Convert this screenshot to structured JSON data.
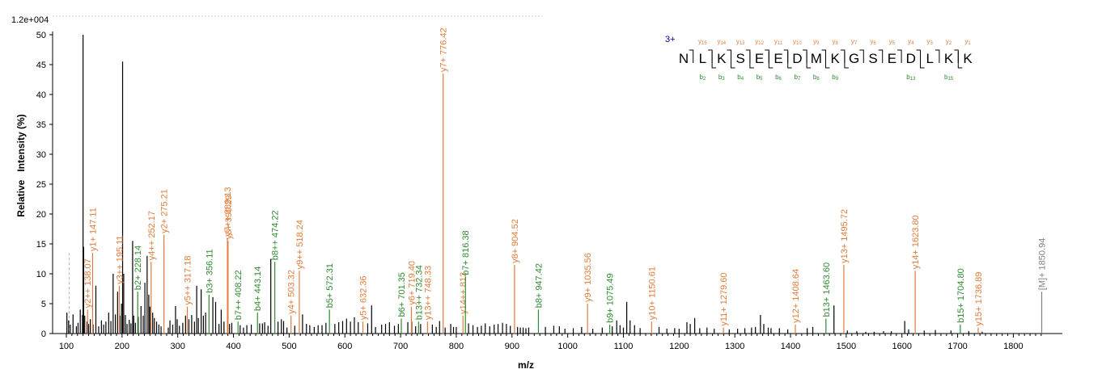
{
  "chart_data": {
    "type": "bar",
    "scale_label": "1.2e+004",
    "xlabel": "m/z",
    "ylabel": "Relative   Intensity (%)",
    "xlim": [
      80,
      1860
    ],
    "ylim": [
      0,
      50
    ],
    "x_ticks": [
      "100",
      "200",
      "300",
      "400",
      "500",
      "600",
      "700",
      "800",
      "900",
      "1000",
      "1100",
      "1200",
      "1300",
      "1400",
      "1500",
      "1600",
      "1700",
      "1800"
    ],
    "y_ticks": [
      "0",
      "5",
      "10",
      "15",
      "20",
      "25",
      "30",
      "35",
      "40",
      "45",
      "50"
    ],
    "colors": {
      "y_ion": "#e07b39",
      "b_ion": "#2e8b2e",
      "precursor": "#808080",
      "other": "#000000",
      "sequence_charge": "#00008b"
    },
    "background_peaks": [
      [
        101,
        3.5
      ],
      [
        104,
        2.2
      ],
      [
        107,
        1.5
      ],
      [
        112,
        3.2
      ],
      [
        118,
        1.2
      ],
      [
        121,
        1.8
      ],
      [
        125,
        4.0
      ],
      [
        129,
        3.1
      ],
      [
        130,
        50.0
      ],
      [
        131,
        14.5
      ],
      [
        133,
        3.0
      ],
      [
        137,
        2.0
      ],
      [
        140,
        1.6
      ],
      [
        143,
        2.4
      ],
      [
        148,
        1.5
      ],
      [
        153,
        8.0
      ],
      [
        158,
        1.2
      ],
      [
        163,
        2.2
      ],
      [
        167,
        1.5
      ],
      [
        171,
        2.0
      ],
      [
        176,
        3.5
      ],
      [
        180,
        2.1
      ],
      [
        184,
        10.0
      ],
      [
        188,
        3.2
      ],
      [
        192,
        7.0
      ],
      [
        196,
        3.0
      ],
      [
        199,
        5.0
      ],
      [
        201,
        45.5
      ],
      [
        203,
        10.0
      ],
      [
        206,
        3.1
      ],
      [
        209,
        1.6
      ],
      [
        213,
        2.3
      ],
      [
        216,
        1.7
      ],
      [
        219,
        15.5
      ],
      [
        221,
        3.0
      ],
      [
        224,
        1.8
      ],
      [
        229,
        2.8
      ],
      [
        234,
        4.6
      ],
      [
        238,
        3.0
      ],
      [
        241,
        8.5
      ],
      [
        245,
        13.0
      ],
      [
        248,
        6.5
      ],
      [
        250,
        4.5
      ],
      [
        255,
        3.5
      ],
      [
        258,
        2.6
      ],
      [
        262,
        2.0
      ],
      [
        266,
        1.5
      ],
      [
        270,
        1.2
      ],
      [
        283,
        1.0
      ],
      [
        286,
        2.2
      ],
      [
        291,
        1.5
      ],
      [
        296,
        4.6
      ],
      [
        299,
        2.4
      ],
      [
        303,
        1.3
      ],
      [
        309,
        1.8
      ],
      [
        314,
        3.0
      ],
      [
        320,
        2.4
      ],
      [
        325,
        3.1
      ],
      [
        330,
        2.0
      ],
      [
        334,
        8.0
      ],
      [
        337,
        2.6
      ],
      [
        342,
        7.4
      ],
      [
        346,
        3.0
      ],
      [
        350,
        3.5
      ],
      [
        363,
        6.1
      ],
      [
        368,
        5.3
      ],
      [
        374,
        1.6
      ],
      [
        378,
        4.0
      ],
      [
        383,
        2.0
      ],
      [
        393,
        1.6
      ],
      [
        397,
        1.8
      ],
      [
        412,
        1.4
      ],
      [
        418,
        1.0
      ],
      [
        424,
        1.4
      ],
      [
        432,
        1.5
      ],
      [
        447,
        1.7
      ],
      [
        452,
        1.7
      ],
      [
        456,
        1.9
      ],
      [
        462,
        1.3
      ],
      [
        467,
        12.5
      ],
      [
        480,
        2.0
      ],
      [
        486,
        2.4
      ],
      [
        490,
        2.1
      ],
      [
        496,
        1.0
      ],
      [
        510,
        1.3
      ],
      [
        524,
        3.2
      ],
      [
        531,
        1.6
      ],
      [
        537,
        1.4
      ],
      [
        545,
        1.1
      ],
      [
        552,
        1.4
      ],
      [
        559,
        1.4
      ],
      [
        566,
        1.8
      ],
      [
        582,
        1.6
      ],
      [
        589,
        1.9
      ],
      [
        596,
        2.1
      ],
      [
        603,
        2.5
      ],
      [
        610,
        2.0
      ],
      [
        617,
        2.7
      ],
      [
        624,
        1.9
      ],
      [
        641,
        1.7
      ],
      [
        648,
        4.7
      ],
      [
        655,
        1.1
      ],
      [
        666,
        1.5
      ],
      [
        673,
        1.6
      ],
      [
        680,
        1.9
      ],
      [
        689,
        1.3
      ],
      [
        696,
        1.6
      ],
      [
        713,
        1.9
      ],
      [
        720,
        2.0
      ],
      [
        727,
        1.2
      ],
      [
        736,
        1.6
      ],
      [
        757,
        1.5
      ],
      [
        764,
        1.1
      ],
      [
        770,
        2.1
      ],
      [
        780,
        1.0
      ],
      [
        790,
        1.6
      ],
      [
        795,
        1.1
      ],
      [
        800,
        1.1
      ],
      [
        822,
        1.7
      ],
      [
        830,
        1.4
      ],
      [
        838,
        1.1
      ],
      [
        845,
        1.3
      ],
      [
        852,
        1.7
      ],
      [
        860,
        1.2
      ],
      [
        868,
        1.5
      ],
      [
        875,
        1.6
      ],
      [
        883,
        1.8
      ],
      [
        890,
        1.6
      ],
      [
        897,
        1.3
      ],
      [
        910,
        1.1
      ],
      [
        915,
        1.0
      ],
      [
        920,
        1.0
      ],
      [
        925,
        0.9
      ],
      [
        930,
        1.0
      ],
      [
        960,
        1.1
      ],
      [
        975,
        1.3
      ],
      [
        985,
        1.2
      ],
      [
        995,
        0.8
      ],
      [
        1010,
        0.9
      ],
      [
        1025,
        1.1
      ],
      [
        1045,
        0.8
      ],
      [
        1062,
        1.0
      ],
      [
        1080,
        1.2
      ],
      [
        1088,
        2.2
      ],
      [
        1094,
        1.4
      ],
      [
        1100,
        1.0
      ],
      [
        1106,
        5.3
      ],
      [
        1112,
        2.2
      ],
      [
        1120,
        1.4
      ],
      [
        1130,
        0.9
      ],
      [
        1164,
        1.1
      ],
      [
        1178,
        0.8
      ],
      [
        1192,
        0.9
      ],
      [
        1200,
        0.8
      ],
      [
        1214,
        1.9
      ],
      [
        1220,
        1.6
      ],
      [
        1228,
        2.6
      ],
      [
        1237,
        0.9
      ],
      [
        1250,
        1.0
      ],
      [
        1263,
        0.8
      ],
      [
        1290,
        0.7
      ],
      [
        1305,
        0.8
      ],
      [
        1318,
        0.9
      ],
      [
        1330,
        1.0
      ],
      [
        1337,
        1.1
      ],
      [
        1346,
        3.1
      ],
      [
        1352,
        1.6
      ],
      [
        1360,
        1.0
      ],
      [
        1365,
        0.9
      ],
      [
        1380,
        0.9
      ],
      [
        1395,
        0.7
      ],
      [
        1430,
        0.9
      ],
      [
        1440,
        1.1
      ],
      [
        1478,
        4.7
      ],
      [
        1502,
        0.5
      ],
      [
        1519,
        0.4
      ],
      [
        1535,
        0.3
      ],
      [
        1550,
        0.3
      ],
      [
        1567,
        0.4
      ],
      [
        1581,
        0.4
      ],
      [
        1605,
        2.1
      ],
      [
        1612,
        0.7
      ],
      [
        1640,
        0.5
      ],
      [
        1660,
        0.6
      ],
      [
        1688,
        0.5
      ],
      [
        1720,
        0.4
      ],
      [
        1744,
        0.3
      ]
    ],
    "annotated_peaks": [
      {
        "mz": 138.07,
        "h": 4.0,
        "ion": "y",
        "label": "y2++ 138.07"
      },
      {
        "mz": 147.11,
        "h": 13.5,
        "ion": "y",
        "label": "y1+ 147.11"
      },
      {
        "mz": 195.11,
        "h": 8.0,
        "ion": "y",
        "label": "y3++ 195.11"
      },
      {
        "mz": 228.14,
        "h": 7.0,
        "ion": "b",
        "label": "b2+ 228.14"
      },
      {
        "mz": 252.17,
        "h": 12.0,
        "ion": "y",
        "label": "y4++ 252.17"
      },
      {
        "mz": 275.21,
        "h": 16.5,
        "ion": "y",
        "label": "y2+ 275.21"
      },
      {
        "mz": 317.18,
        "h": 4.5,
        "ion": "y",
        "label": "y5++ 317.18"
      },
      {
        "mz": 356.11,
        "h": 6.5,
        "ion": "b",
        "label": "b3+ 356.11"
      },
      {
        "mz": 389.13,
        "h": 16.0,
        "ion": "y",
        "label": "y7++ 389.13"
      },
      {
        "mz": 390.29,
        "h": 15.5,
        "ion": "y",
        "label": "y3+ 390.29"
      },
      {
        "mz": 408.22,
        "h": 2.0,
        "ion": "b",
        "label": "b7++ 408.22"
      },
      {
        "mz": 443.14,
        "h": 3.5,
        "ion": "b",
        "label": "b4+ 443.14"
      },
      {
        "mz": 474.22,
        "h": 12.0,
        "ion": "b",
        "label": "b8++ 474.22"
      },
      {
        "mz": 503.32,
        "h": 3.0,
        "ion": "y",
        "label": "y4+ 503.32"
      },
      {
        "mz": 518.24,
        "h": 10.5,
        "ion": "y",
        "label": "y9++ 518.24"
      },
      {
        "mz": 572.31,
        "h": 4.0,
        "ion": "b",
        "label": "b5+ 572.31"
      },
      {
        "mz": 632.36,
        "h": 2.0,
        "ion": "y",
        "label": "y5+ 632.36"
      },
      {
        "mz": 701.35,
        "h": 2.5,
        "ion": "b",
        "label": "b6+ 701.35"
      },
      {
        "mz": 719.4,
        "h": 4.5,
        "ion": "y",
        "label": "y6+ 719.40"
      },
      {
        "mz": 732.34,
        "h": 2.0,
        "ion": "b",
        "label": "b13++ 732.34"
      },
      {
        "mz": 748.33,
        "h": 2.0,
        "ion": "y",
        "label": "y13++ 748.33"
      },
      {
        "mz": 776.42,
        "h": 43.5,
        "ion": "y",
        "label": "y7+ 776.42"
      },
      {
        "mz": 812.0,
        "h": 3.0,
        "ion": "y",
        "label": "y14++ 812"
      },
      {
        "mz": 816.38,
        "h": 9.5,
        "ion": "b",
        "label": "b7+ 816.38"
      },
      {
        "mz": 904.52,
        "h": 11.5,
        "ion": "y",
        "label": "y8+ 904.52"
      },
      {
        "mz": 947.42,
        "h": 4.0,
        "ion": "b",
        "label": "b8+ 947.42"
      },
      {
        "mz": 1035.56,
        "h": 5.0,
        "ion": "y",
        "label": "y9+ 1035.56"
      },
      {
        "mz": 1075.49,
        "h": 1.5,
        "ion": "b",
        "label": "b9+ 1075.49"
      },
      {
        "mz": 1150.61,
        "h": 2.0,
        "ion": "y",
        "label": "y10+ 1150.61"
      },
      {
        "mz": 1279.6,
        "h": 1.0,
        "ion": "y",
        "label": "y11+ 1279.60"
      },
      {
        "mz": 1408.64,
        "h": 1.5,
        "ion": "y",
        "label": "y12+ 1408.64"
      },
      {
        "mz": 1463.6,
        "h": 2.5,
        "ion": "b",
        "label": "b13+ 1463.60"
      },
      {
        "mz": 1495.72,
        "h": 11.5,
        "ion": "y",
        "label": "y13+ 1495.72"
      },
      {
        "mz": 1623.8,
        "h": 10.5,
        "ion": "y",
        "label": "y14+ 1623.80"
      },
      {
        "mz": 1704.8,
        "h": 1.5,
        "ion": "b",
        "label": "b15+ 1704.80"
      },
      {
        "mz": 1736.89,
        "h": 1.0,
        "ion": "y",
        "label": "y15+ 1736.89"
      },
      {
        "mz": 1850.94,
        "h": 7.0,
        "ion": "precursor",
        "label": "[M]+ 1850.94"
      }
    ],
    "sequence": {
      "charge_label": "3+",
      "residues": [
        "N",
        "L",
        "K",
        "S",
        "E",
        "E",
        "D",
        "M",
        "K",
        "G",
        "S",
        "E",
        "D",
        "L",
        "K",
        "K"
      ],
      "y_ions": [
        {
          "after": 0,
          "n": "15"
        },
        {
          "after": 1,
          "n": "14"
        },
        {
          "after": 2,
          "n": "13"
        },
        {
          "after": 3,
          "n": "12"
        },
        {
          "after": 4,
          "n": "11"
        },
        {
          "after": 5,
          "n": "10"
        },
        {
          "after": 6,
          "n": "9"
        },
        {
          "after": 7,
          "n": "8"
        },
        {
          "after": 8,
          "n": "7"
        },
        {
          "after": 9,
          "n": "6"
        },
        {
          "after": 10,
          "n": "5"
        },
        {
          "after": 11,
          "n": "4"
        },
        {
          "after": 12,
          "n": "3"
        },
        {
          "after": 13,
          "n": "2"
        },
        {
          "after": 14,
          "n": "1"
        }
      ],
      "b_ions": [
        {
          "after": 1,
          "n": "2"
        },
        {
          "after": 2,
          "n": "3"
        },
        {
          "after": 3,
          "n": "4"
        },
        {
          "after": 4,
          "n": "5"
        },
        {
          "after": 5,
          "n": "6"
        },
        {
          "after": 6,
          "n": "7"
        },
        {
          "after": 7,
          "n": "8"
        },
        {
          "after": 8,
          "n": "9"
        },
        {
          "after": 12,
          "n": "13"
        },
        {
          "after": 14,
          "n": "15"
        }
      ]
    }
  }
}
